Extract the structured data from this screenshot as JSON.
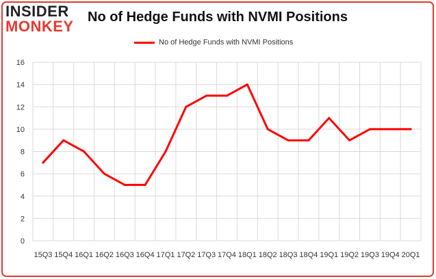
{
  "brand": {
    "line1": "INSIDER",
    "line2": "MONKEY"
  },
  "title": "No of Hedge Funds with NVMI Positions",
  "colors": {
    "series": "#ff0000",
    "logo_accent": "#e8392f",
    "frame": "#e03a2a",
    "grid": "#d9d9d9"
  },
  "chart_data": {
    "type": "line",
    "title": "No of Hedge Funds with NVMI Positions",
    "xlabel": "",
    "ylabel": "",
    "ylim": [
      0,
      16
    ],
    "yticks": [
      0,
      2,
      4,
      6,
      8,
      10,
      12,
      14,
      16
    ],
    "grid": true,
    "legend": "top-center",
    "categories": [
      "15Q3",
      "15Q4",
      "16Q1",
      "16Q2",
      "16Q3",
      "16Q4",
      "17Q1",
      "17Q2",
      "17Q3",
      "17Q4",
      "18Q1",
      "18Q2",
      "18Q3",
      "18Q4",
      "19Q1",
      "19Q2",
      "19Q3",
      "19Q4",
      "20Q1"
    ],
    "series": [
      {
        "name": "No of Hedge Funds with NVMI Positions",
        "values": [
          7,
          9,
          8,
          6,
          5,
          5,
          8,
          12,
          13,
          13,
          14,
          10,
          9,
          9,
          11,
          9,
          10,
          10,
          10
        ]
      }
    ]
  }
}
